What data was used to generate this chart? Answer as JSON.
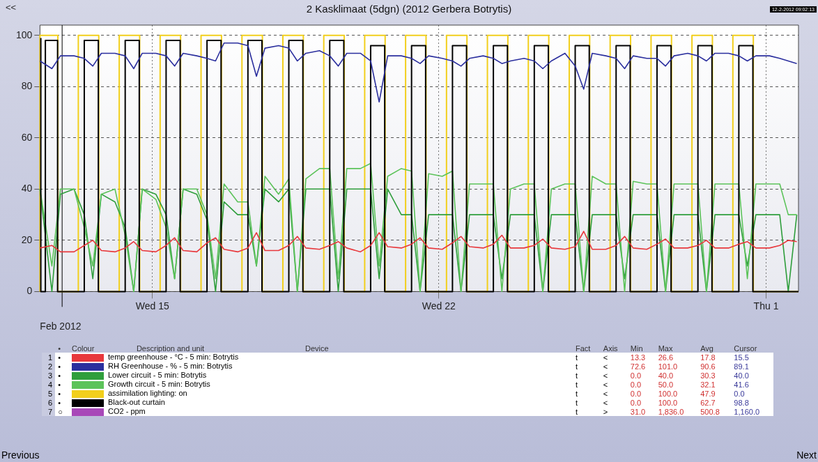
{
  "chart_data": {
    "type": "line",
    "title": "2 Kasklimaat (5dgn) (2012 Gerbera Botrytis)",
    "xlabel": "Feb 2012",
    "x": [
      "2012-02-12T06:00",
      "2012-02-12T13:00",
      "2012-02-12T18:00",
      "2012-02-13T02:00",
      "2012-02-13T08:00",
      "2012-02-13T13:00",
      "2012-02-13T18:00",
      "2012-02-14T02:00",
      "2012-02-14T08:00",
      "2012-02-14T13:00",
      "2012-02-14T18:00",
      "2012-02-15T02:00",
      "2012-02-15T08:00",
      "2012-02-15T13:00",
      "2012-02-15T18:00",
      "2012-02-16T02:00",
      "2012-02-16T08:00",
      "2012-02-16T13:00",
      "2012-02-16T18:00",
      "2012-02-17T02:00",
      "2012-02-17T08:00",
      "2012-02-17T13:00",
      "2012-02-17T18:00",
      "2012-02-18T02:00",
      "2012-02-18T08:00",
      "2012-02-18T13:00",
      "2012-02-18T18:00",
      "2012-02-19T02:00",
      "2012-02-19T08:00",
      "2012-02-19T13:00",
      "2012-02-19T18:00",
      "2012-02-20T02:00",
      "2012-02-20T08:00",
      "2012-02-20T13:00",
      "2012-02-20T18:00",
      "2012-02-21T02:00",
      "2012-02-21T08:00",
      "2012-02-21T13:00",
      "2012-02-21T18:00",
      "2012-02-22T02:00",
      "2012-02-22T08:00",
      "2012-02-22T13:00",
      "2012-02-22T18:00",
      "2012-02-23T02:00",
      "2012-02-23T08:00",
      "2012-02-23T13:00",
      "2012-02-23T18:00",
      "2012-02-24T02:00",
      "2012-02-24T08:00",
      "2012-02-24T13:00",
      "2012-02-24T18:00",
      "2012-02-25T02:00",
      "2012-02-25T08:00",
      "2012-02-25T13:00",
      "2012-02-25T18:00",
      "2012-02-26T02:00",
      "2012-02-26T08:00",
      "2012-02-26T13:00",
      "2012-02-26T18:00",
      "2012-02-27T02:00",
      "2012-02-27T08:00",
      "2012-02-27T13:00",
      "2012-02-27T18:00",
      "2012-02-28T02:00",
      "2012-02-28T08:00",
      "2012-02-28T13:00",
      "2012-02-28T18:00",
      "2012-02-29T02:00",
      "2012-02-29T08:00",
      "2012-02-29T13:00",
      "2012-02-29T18:00",
      "2012-03-01T02:00",
      "2012-03-01T08:00",
      "2012-03-01T13:00",
      "2012-03-01T18:00"
    ],
    "series": [
      {
        "name": "assimilation lighting: on",
        "color": "#f2cf1c",
        "type": "step",
        "x": [
          "2012-02-12T06:00",
          "2012-02-12T16:30",
          "2012-02-13T04:30",
          "2012-02-13T16:30",
          "2012-02-14T04:30",
          "2012-02-14T16:30",
          "2012-02-15T04:30",
          "2012-02-15T16:30",
          "2012-02-16T04:30",
          "2012-02-16T16:30",
          "2012-02-17T04:30",
          "2012-02-17T16:30",
          "2012-02-18T04:30",
          "2012-02-18T16:30",
          "2012-02-19T04:30",
          "2012-02-19T16:30",
          "2012-02-20T04:30",
          "2012-02-20T16:30",
          "2012-02-21T04:30",
          "2012-02-21T16:30",
          "2012-02-22T04:30",
          "2012-02-22T16:30",
          "2012-02-23T04:30",
          "2012-02-23T16:30",
          "2012-02-24T04:30",
          "2012-02-24T16:30",
          "2012-02-25T04:30",
          "2012-02-25T16:30",
          "2012-02-26T04:30",
          "2012-02-26T16:30",
          "2012-02-27T04:30",
          "2012-02-27T16:30",
          "2012-02-28T04:30",
          "2012-02-28T16:30",
          "2012-02-29T04:30",
          "2012-02-29T16:30",
          "2012-03-01T04:30",
          "2012-03-01T19:00"
        ],
        "values": [
          0,
          100,
          0,
          100,
          0,
          100,
          0,
          100,
          0,
          100,
          0,
          100,
          0,
          100,
          0,
          100,
          0,
          100,
          0,
          100,
          0,
          100,
          0,
          100,
          0,
          100,
          0,
          100,
          0,
          100,
          0,
          100,
          0,
          100,
          0,
          100,
          0,
          0
        ]
      },
      {
        "name": "Lower circuit - 5 min: Botrytis",
        "color": "#2f9e3c",
        "values": [
          40,
          0,
          38,
          40,
          30,
          5,
          38,
          35,
          25,
          0,
          40,
          38,
          30,
          5,
          40,
          38,
          28,
          0,
          35,
          30,
          30,
          10,
          40,
          35,
          40,
          0,
          40,
          40,
          40,
          0,
          40,
          40,
          40,
          5,
          40,
          30,
          30,
          0,
          30,
          30,
          30,
          0,
          30,
          30,
          30,
          5,
          30,
          30,
          30,
          0,
          30,
          30,
          30,
          0,
          30,
          30,
          30,
          5,
          30,
          30,
          30,
          0,
          30,
          30,
          30,
          0,
          30,
          30,
          30,
          10,
          30,
          30,
          30,
          0,
          30
        ]
      },
      {
        "name": "Growth circuit - 5 min: Botrytis",
        "color": "#5cc35a",
        "values": [
          40,
          10,
          40,
          40,
          25,
          10,
          38,
          40,
          22,
          0,
          40,
          36,
          25,
          5,
          40,
          40,
          30,
          5,
          42,
          35,
          35,
          10,
          45,
          38,
          44,
          0,
          44,
          48,
          48,
          5,
          48,
          48,
          50,
          10,
          45,
          48,
          47,
          0,
          46,
          45,
          47,
          0,
          42,
          42,
          42,
          0,
          40,
          42,
          42,
          0,
          40,
          42,
          42,
          0,
          45,
          42,
          42,
          0,
          43,
          42,
          42,
          0,
          42,
          42,
          42,
          0,
          42,
          42,
          42,
          5,
          42,
          42,
          42,
          30,
          30
        ]
      },
      {
        "name": "Black-out curtain",
        "color": "#000000",
        "type": "step",
        "x": [
          "2012-02-12T06:30",
          "2012-02-12T09:10",
          "2012-02-12T16:20",
          "2012-02-13T08:00",
          "2012-02-13T16:15",
          "2012-02-14T08:00",
          "2012-02-14T16:15",
          "2012-02-15T08:00",
          "2012-02-15T16:15",
          "2012-02-16T08:00",
          "2012-02-16T16:15",
          "2012-02-17T08:00",
          "2012-02-17T16:15",
          "2012-02-18T08:00",
          "2012-02-18T16:15",
          "2012-02-19T08:00",
          "2012-02-19T16:15",
          "2012-02-20T08:00",
          "2012-02-20T16:15",
          "2012-02-21T08:00",
          "2012-02-21T16:15",
          "2012-02-22T08:00",
          "2012-02-22T16:15",
          "2012-02-23T08:00",
          "2012-02-23T16:15",
          "2012-02-24T08:00",
          "2012-02-24T16:15",
          "2012-02-25T08:00",
          "2012-02-25T16:15",
          "2012-02-26T08:00",
          "2012-02-26T16:15",
          "2012-02-27T08:00",
          "2012-02-27T16:15",
          "2012-02-28T08:00",
          "2012-02-28T16:15",
          "2012-02-29T08:00",
          "2012-02-29T16:15",
          "2012-03-01T07:40",
          "2012-03-01T19:00"
        ],
        "values": [
          99,
          0,
          98,
          0,
          98,
          0,
          98,
          0,
          98,
          0,
          98,
          0,
          98,
          0,
          98,
          0,
          98,
          0,
          96,
          0,
          96,
          0,
          96,
          0,
          96,
          0,
          96,
          0,
          96,
          0,
          96,
          0,
          96,
          0,
          96,
          0,
          96,
          0,
          0
        ]
      },
      {
        "name": "temp greenhouse - °C - 5 min: Botrytis",
        "color": "#e8383c",
        "values": [
          17,
          18,
          15.5,
          15.5,
          18,
          20,
          16,
          15.5,
          17,
          19.5,
          16,
          15.5,
          18,
          21,
          16,
          15.5,
          19,
          21,
          16.5,
          15.5,
          17,
          23,
          16,
          16,
          18,
          21.5,
          17,
          16.5,
          18,
          19.5,
          17,
          15.5,
          18,
          23,
          17.5,
          17,
          18.5,
          21,
          17,
          16.5,
          19,
          21.5,
          17.5,
          17,
          18.5,
          22,
          17,
          17,
          18,
          20.5,
          17,
          16.5,
          17.5,
          23.5,
          16.5,
          16.5,
          18,
          21.5,
          17,
          16.5,
          18.5,
          20.5,
          17,
          17,
          18,
          20,
          17,
          17,
          18.5,
          19.5,
          17,
          17,
          18,
          20,
          19.5
        ]
      },
      {
        "name": "RH Greenhouse - % - 5 min: Botrytis",
        "color": "#2b2f9e",
        "values": [
          90,
          87,
          92,
          92,
          91,
          88,
          93,
          93,
          92,
          87,
          93,
          93,
          92,
          88,
          93,
          92,
          91,
          90,
          97,
          97,
          96,
          84,
          95,
          96,
          95,
          90,
          93,
          94,
          92,
          88,
          93,
          93,
          90,
          74,
          92,
          92,
          91,
          89,
          92,
          91,
          90,
          88,
          91,
          92,
          91,
          89,
          90,
          91,
          90,
          87,
          90,
          93,
          88,
          79,
          93,
          92,
          91,
          87,
          92,
          91,
          91,
          88,
          92,
          93,
          92,
          90,
          93,
          93,
          92,
          90,
          92,
          92,
          91,
          90,
          89
        ]
      },
      {
        "name": "CO2 - ppm",
        "color": "#a848b8",
        "values": [
          null,
          null,
          null,
          null,
          null,
          null,
          null,
          null,
          null,
          null,
          null,
          null,
          null,
          null,
          null,
          null,
          null,
          null,
          null,
          null,
          null,
          null,
          null,
          null,
          null,
          null,
          null,
          null,
          null,
          null,
          null,
          null,
          null,
          null,
          null,
          null,
          null,
          null,
          null,
          null,
          null,
          null,
          null,
          null,
          null,
          null,
          null,
          null,
          null,
          null,
          null,
          null,
          null,
          null,
          null,
          null,
          null,
          null,
          null,
          null,
          null,
          null,
          null,
          null,
          null,
          null,
          null,
          null,
          null,
          null,
          null,
          null,
          null,
          null,
          null
        ]
      }
    ],
    "xlim": [
      "2012-02-12T06:00",
      "2012-03-01T19:00"
    ],
    "xticks": [
      {
        "value": "2012-02-15",
        "label": "Wed 15"
      },
      {
        "value": "2012-02-22",
        "label": "Wed 22"
      },
      {
        "value": "2012-03-01",
        "label": "Thu 1"
      }
    ],
    "ylim": [
      0,
      104
    ],
    "yticks": [
      0,
      20,
      40,
      60,
      80,
      100
    ],
    "grid": true,
    "legend": "bottom",
    "marker": "none",
    "line_style": "solid",
    "ref_lines": [
      {
        "axis": "x",
        "value": "2012-02-12T19:00",
        "color": "#000000"
      }
    ],
    "annotations": [
      "<<",
      "Previous",
      "Next",
      "12-2-2012 09:02:13",
      "•",
      "Colour",
      "Description and unit",
      "Device",
      "Fact",
      "Axis",
      "Min",
      "Max",
      "Avg",
      "Cursor",
      "1",
      "•",
      "t",
      "<",
      "13.3",
      "26.6",
      "17.8",
      "15.5",
      "2",
      "•",
      "t",
      "<",
      "72.6",
      "101.0",
      "90.6",
      "89.1",
      "3",
      "•",
      "t",
      "<",
      "0.0",
      "40.0",
      "30.3",
      "40.0",
      "4",
      "•",
      "t",
      "<",
      "0.0",
      "50.0",
      "32.1",
      "41.6",
      "5",
      "•",
      "t",
      "<",
      "0.0",
      "100.0",
      "47.9",
      "0.0",
      "6",
      "•",
      "t",
      "<",
      "0.0",
      "100.0",
      "62.7",
      "98.8",
      "7",
      "○",
      "t",
      ">",
      "31.0",
      "1,836.0",
      "500.8",
      "1,160.0"
    ]
  }
}
